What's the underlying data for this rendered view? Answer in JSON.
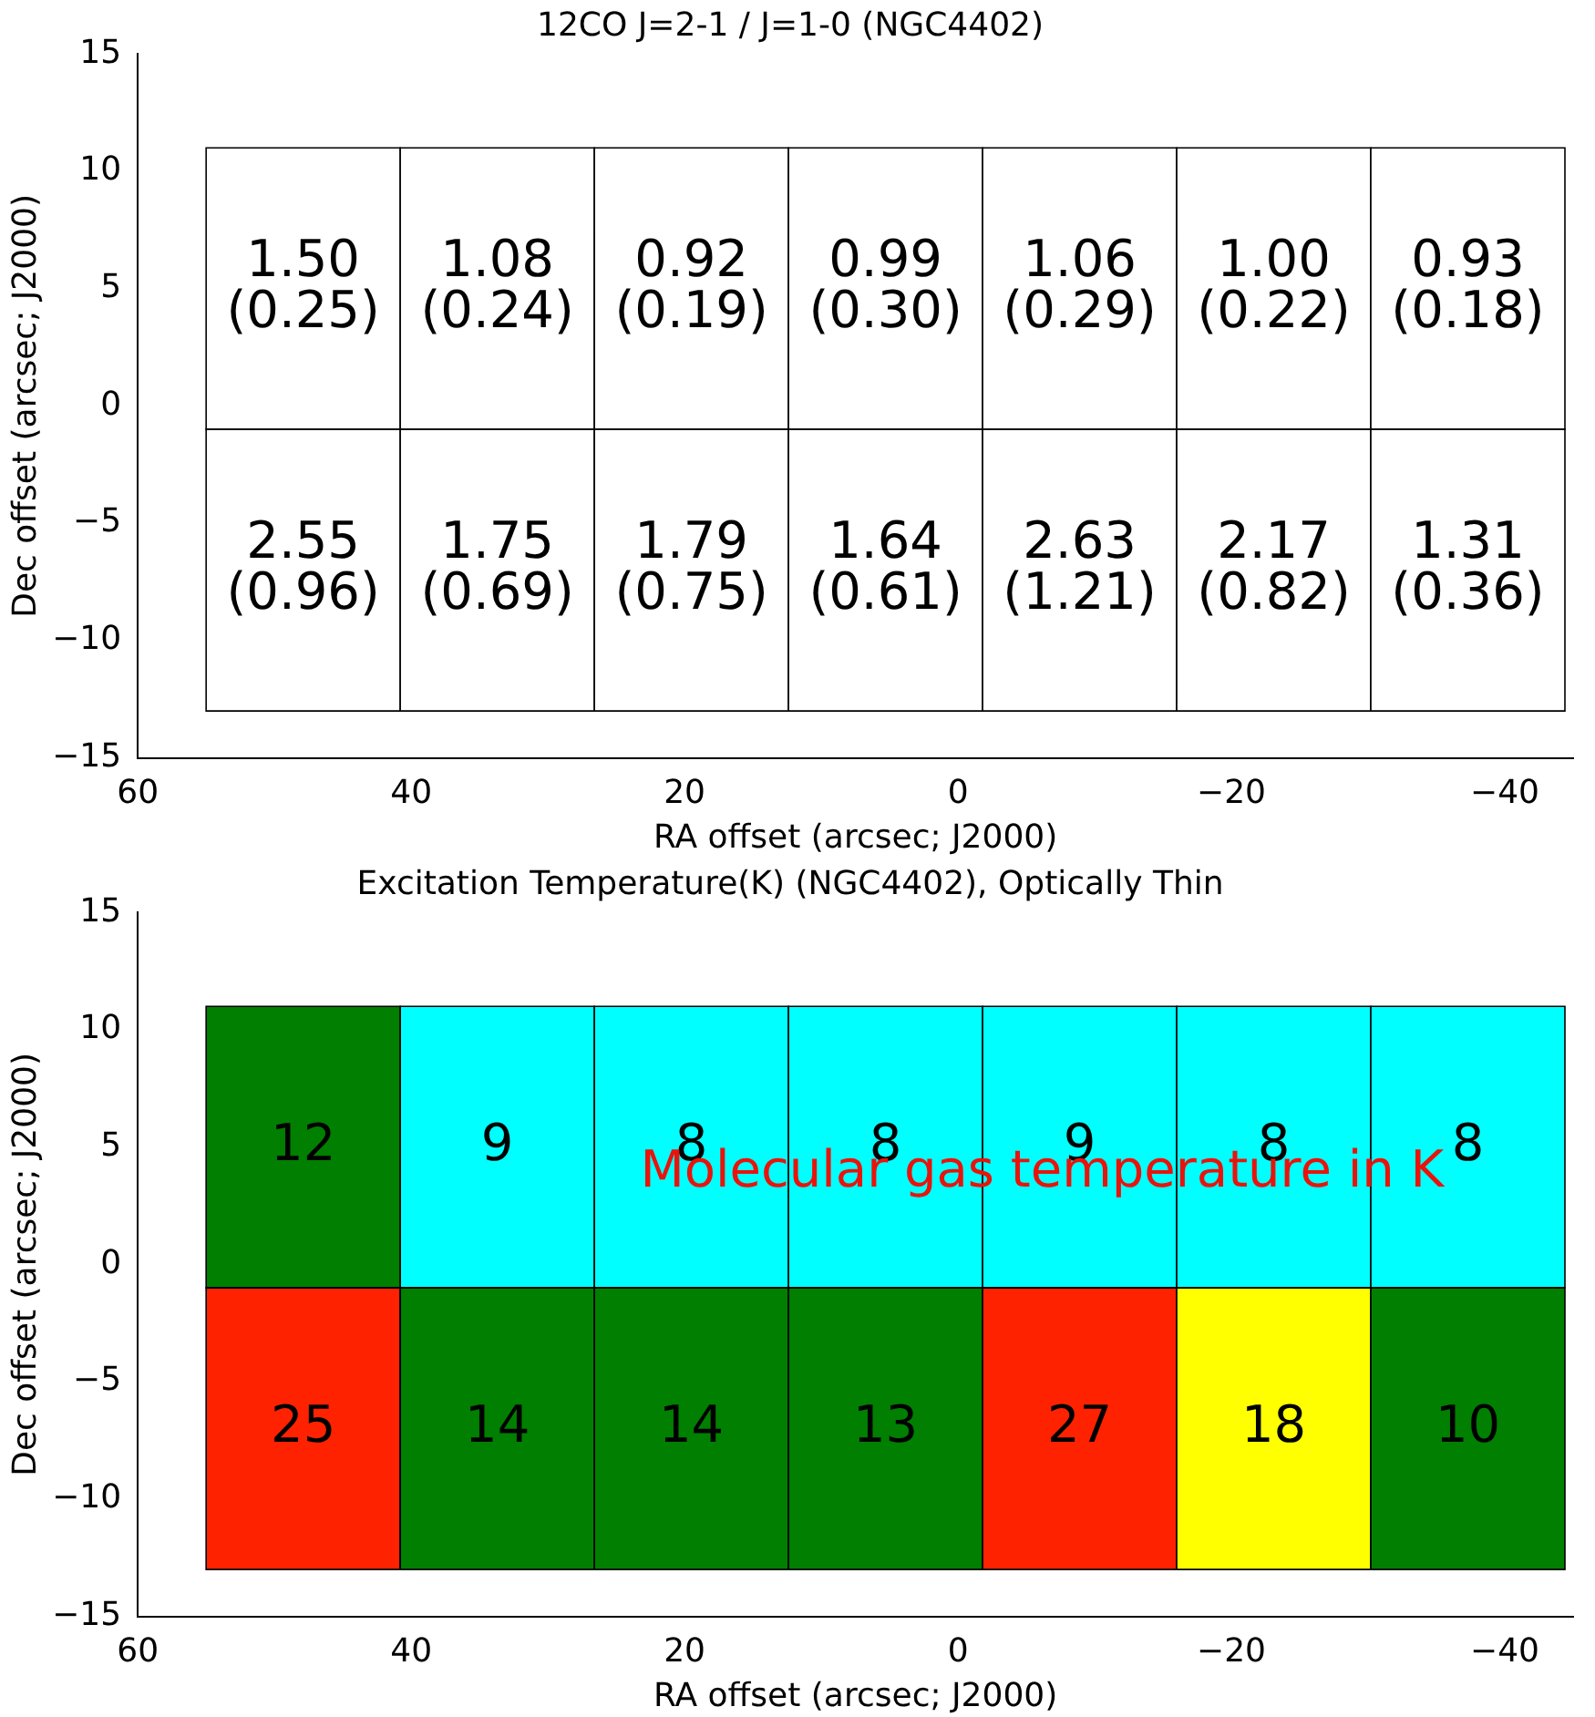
{
  "chart_data": [
    {
      "type": "heatmap",
      "title": "12CO J=2-1 / J=1-0 (NGC4402)",
      "xlabel": "RA offset (arcsec; J2000)",
      "ylabel": "Dec offset (arcsec; J2000)",
      "x": [
        47.9,
        33.7,
        19.5,
        5.3,
        -8.9,
        -23.1,
        -37.3
      ],
      "y": [
        5,
        -7
      ],
      "cells": [
        [
          1.5,
          1.08,
          0.92,
          0.99,
          1.06,
          1.0,
          0.93
        ],
        [
          2.55,
          1.75,
          1.79,
          1.64,
          2.63,
          2.17,
          1.31
        ]
      ],
      "cell_labels": [
        [
          "1.50",
          "1.08",
          "0.92",
          "0.99",
          "1.06",
          "1.00",
          "0.93"
        ],
        [
          "2.55",
          "1.75",
          "1.79",
          "1.64",
          "2.63",
          "2.17",
          "1.31"
        ]
      ],
      "annotations": [
        "(0.25)",
        "(0.24)",
        "(0.19)",
        "(0.30)",
        "(0.29)",
        "(0.22)",
        "(0.18)",
        "(0.96)",
        "(0.69)",
        "(0.75)",
        "(0.61)",
        "(1.21)",
        "(0.82)",
        "(0.36)"
      ],
      "colors": [
        [
          "#ffffff",
          "#ffffff",
          "#ffffff",
          "#ffffff",
          "#ffffff",
          "#ffffff",
          "#ffffff"
        ],
        [
          "#ffffff",
          "#ffffff",
          "#ffffff",
          "#ffffff",
          "#ffffff",
          "#ffffff",
          "#ffffff"
        ]
      ],
      "xlim": [
        60,
        -45
      ],
      "xticks": [
        60,
        40,
        20,
        0,
        -20,
        -40
      ],
      "ylim": [
        -15,
        15
      ],
      "yticks": [
        -15,
        -10,
        -5,
        0,
        5,
        10,
        15
      ],
      "data_labels": true
    },
    {
      "type": "heatmap",
      "title": "Excitation Temperature(K) (NGC4402), Optically Thin",
      "xlabel": "RA offset (arcsec; J2000)",
      "ylabel": "Dec offset (arcsec; J2000)",
      "x": [
        47.9,
        33.7,
        19.5,
        5.3,
        -8.9,
        -23.1,
        -37.3
      ],
      "y": [
        5,
        -7
      ],
      "cells": [
        [
          12,
          9,
          8,
          8,
          9,
          8,
          8
        ],
        [
          25,
          14,
          14,
          13,
          27,
          18,
          10
        ]
      ],
      "colors": [
        [
          "#007f00",
          "#00ffff",
          "#00ffff",
          "#00ffff",
          "#00ffff",
          "#00ffff",
          "#00ffff"
        ],
        [
          "#ff2200",
          "#007f00",
          "#007f00",
          "#007f00",
          "#ff2200",
          "#ffff00",
          "#007f00"
        ]
      ],
      "xlim": [
        60,
        -45
      ],
      "xticks": [
        60,
        40,
        20,
        0,
        -20,
        -40
      ],
      "ylim": [
        -15,
        15
      ],
      "yticks": [
        -15,
        -10,
        -5,
        0,
        5,
        10,
        15
      ],
      "data_labels": true,
      "annotations": [
        "Molecular gas temperature in K"
      ]
    }
  ]
}
